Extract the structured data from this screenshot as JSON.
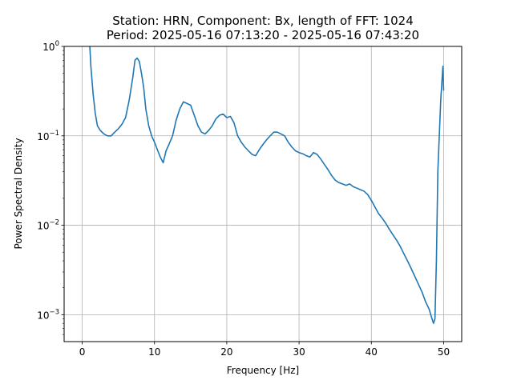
{
  "chart_data": {
    "type": "line",
    "title": "Station: HRN, Component: Bx, length of FFT: 1024",
    "subtitle": "Period: 2025-05-16 07:13:20 - 2025-05-16 07:43:20",
    "xlabel": "Frequency [Hz]",
    "ylabel": "Power Spectral Density",
    "xlim": [
      -2.5,
      52.5
    ],
    "ylim": [
      0.0005,
      1
    ],
    "yscale": "log",
    "grid": true,
    "x_ticks": [
      0,
      10,
      20,
      30,
      40,
      50
    ],
    "x_tick_labels": [
      "0",
      "10",
      "20",
      "30",
      "40",
      "50"
    ],
    "y_ticks": [
      0.001,
      0.01,
      0.1,
      1
    ],
    "y_tick_labels": [
      {
        "base": "10",
        "exp": "−3"
      },
      {
        "base": "10",
        "exp": "−2"
      },
      {
        "base": "10",
        "exp": "−1"
      },
      {
        "base": "10",
        "exp": "0"
      }
    ],
    "color": "#1f77b4",
    "series": [
      {
        "x": [
          1.0,
          1.2,
          1.5,
          1.8,
          2.1,
          2.5,
          3.0,
          3.5,
          4.0,
          4.5,
          5.0,
          5.5,
          6.0,
          6.5,
          7.0,
          7.3,
          7.6,
          7.9,
          8.2,
          8.5,
          8.8,
          9.2,
          9.6,
          10.0,
          10.4,
          10.8,
          11.2,
          11.6,
          12.0,
          12.5,
          13.0,
          13.5,
          14.0,
          14.5,
          15.0,
          15.5,
          16.0,
          16.5,
          17.0,
          17.5,
          18.0,
          18.5,
          19.0,
          19.5,
          20.0,
          20.5,
          21.0,
          21.5,
          22.0,
          22.5,
          23.0,
          23.5,
          24.0,
          24.5,
          25.0,
          25.5,
          26.0,
          26.5,
          27.0,
          27.5,
          28.0,
          28.5,
          29.0,
          29.5,
          30.0,
          30.5,
          31.0,
          31.5,
          32.0,
          32.5,
          33.0,
          33.5,
          34.0,
          34.5,
          35.0,
          35.5,
          36.0,
          36.5,
          37.0,
          37.5,
          38.0,
          38.5,
          39.0,
          39.5,
          40.0,
          40.5,
          41.0,
          41.5,
          42.0,
          42.5,
          43.0,
          43.5,
          44.0,
          44.5,
          45.0,
          45.5,
          46.0,
          46.5,
          47.0,
          47.5,
          48.0,
          48.3,
          48.6,
          48.8,
          49.0,
          49.2,
          49.4,
          49.6,
          49.8,
          49.9,
          50.0
        ],
        "y": [
          1.2,
          0.6,
          0.3,
          0.18,
          0.13,
          0.115,
          0.105,
          0.1,
          0.1,
          0.11,
          0.12,
          0.135,
          0.16,
          0.25,
          0.45,
          0.7,
          0.74,
          0.68,
          0.5,
          0.35,
          0.2,
          0.13,
          0.1,
          0.085,
          0.07,
          0.058,
          0.05,
          0.068,
          0.08,
          0.1,
          0.15,
          0.2,
          0.24,
          0.23,
          0.22,
          0.17,
          0.13,
          0.11,
          0.105,
          0.115,
          0.13,
          0.155,
          0.17,
          0.175,
          0.16,
          0.165,
          0.14,
          0.1,
          0.085,
          0.075,
          0.068,
          0.062,
          0.06,
          0.07,
          0.08,
          0.09,
          0.1,
          0.11,
          0.11,
          0.105,
          0.1,
          0.085,
          0.075,
          0.068,
          0.065,
          0.063,
          0.06,
          0.058,
          0.065,
          0.062,
          0.055,
          0.048,
          0.042,
          0.036,
          0.032,
          0.03,
          0.029,
          0.028,
          0.029,
          0.027,
          0.026,
          0.025,
          0.024,
          0.022,
          0.019,
          0.016,
          0.0135,
          0.012,
          0.0105,
          0.009,
          0.0078,
          0.0068,
          0.0058,
          0.0048,
          0.004,
          0.0033,
          0.0027,
          0.0022,
          0.0018,
          0.0014,
          0.00115,
          0.00095,
          0.0008,
          0.0009,
          0.004,
          0.04,
          0.1,
          0.25,
          0.45,
          0.6,
          0.32
        ]
      }
    ]
  }
}
